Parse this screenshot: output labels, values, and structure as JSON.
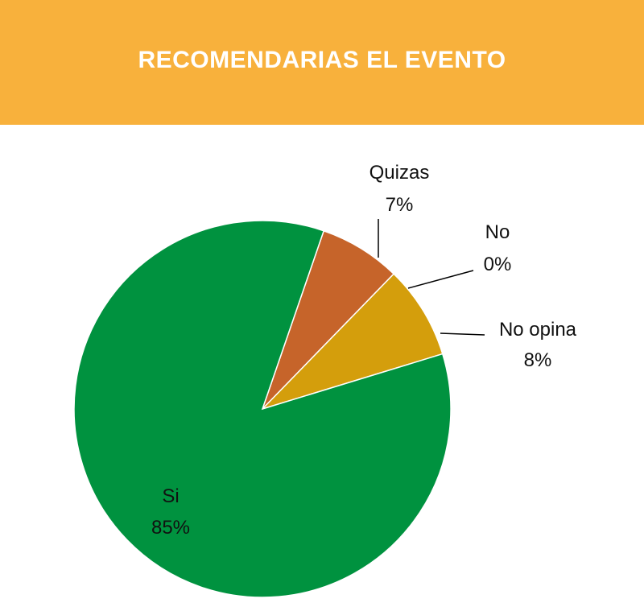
{
  "header": {
    "title": "RECOMENDARIAS EL EVENTO"
  },
  "chart_data": {
    "type": "pie",
    "title": "RECOMENDARIAS EL EVENTO",
    "slices": [
      {
        "label": "Quizas",
        "value": 7,
        "value_label": "7%",
        "color": "#c6642a"
      },
      {
        "label": "No",
        "value": 0,
        "value_label": "0%",
        "color": "#c6642a"
      },
      {
        "label": "No opina",
        "value": 8,
        "value_label": "8%",
        "color": "#d49e0c"
      },
      {
        "label": "Si",
        "value": 85,
        "value_label": "85%",
        "color": "#00923f"
      }
    ]
  }
}
